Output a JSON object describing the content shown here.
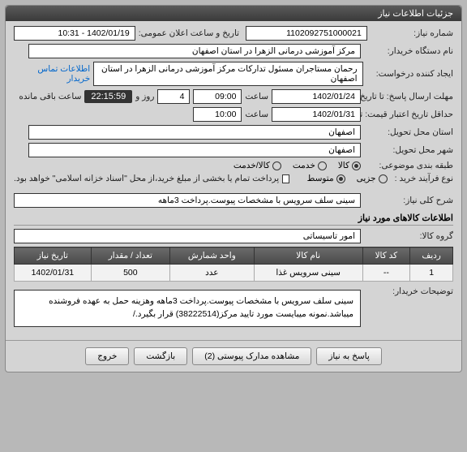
{
  "panel": {
    "title": "جزئیات اطلاعات نیاز"
  },
  "fields": {
    "req_no_label": "شماره نیاز:",
    "req_no": "1102092751000021",
    "announce_label": "تاریخ و ساعت اعلان عمومی:",
    "announce": "1402/01/19 - 10:31",
    "buyer_label": "نام دستگاه خریدار:",
    "buyer": "مرکز آموزشی درمانی الزهرا در استان اصفهان",
    "creator_label": "ایجاد کننده درخواست:",
    "creator": "رحمان مستاجران مسئول تدارکات مرکز آموزشی درمانی الزهرا در استان اصفهان",
    "contact_link": "اطلاعات تماس خریدار",
    "deadline_label": "مهلت ارسال پاسخ: تا تاریخ:",
    "deadline_date": "1402/01/24",
    "time_label": "ساعت",
    "deadline_time": "09:00",
    "days_label": "روز و",
    "days": "4",
    "timer": "22:15:59",
    "remaining": "ساعت باقی مانده",
    "validity_label": "حداقل تاریخ اعتبار قیمت: تا تاریخ:",
    "validity_date": "1402/01/31",
    "validity_time": "10:00",
    "province_label": "استان محل تحویل:",
    "province": "اصفهان",
    "city_label": "شهر محل تحویل:",
    "city": "اصفهان",
    "subject_cat_label": "طبقه بندی موضوعی:",
    "cat_goods": "کالا",
    "cat_service": "خدمت",
    "cat_both": "کالا/خدمت",
    "proc_label": "نوع فرآیند خرید :",
    "proc_small": "جزیی",
    "proc_med": "متوسط",
    "pay_note": "پرداخت تمام یا بخشی از مبلغ خرید،از محل \"اسناد خزانه اسلامی\" خواهد بود.",
    "summary_label": "شرح کلی نیاز:",
    "summary": "سینی سلف سرویس با مشخصات پیوست.پرداخت 3ماهه",
    "items_section": "اطلاعات کالاهای مورد نیاز",
    "group_label": "گروه کالا:",
    "group": "امور تاسیساتی",
    "buyer_desc_label": "توضیحات خریدار:",
    "buyer_desc": "سینی سلف سرویس با مشخصات پیوست.پرداخت 3ماهه وهزینه حمل به عهده فروشنده میباشد.نمونه میبایست مورد تایید مرکز(38222514) قرار بگیرد./"
  },
  "table": {
    "headers": [
      "ردیف",
      "کد کالا",
      "نام کالا",
      "واحد شمارش",
      "تعداد / مقدار",
      "تاریخ نیاز"
    ],
    "rows": [
      [
        "1",
        "--",
        "سینی سرویس غذا",
        "عدد",
        "500",
        "1402/01/31"
      ]
    ]
  },
  "buttons": {
    "respond": "پاسخ به نیاز",
    "attachments": "مشاهده مدارک پیوستی (2)",
    "back": "بازگشت",
    "exit": "خروج"
  }
}
